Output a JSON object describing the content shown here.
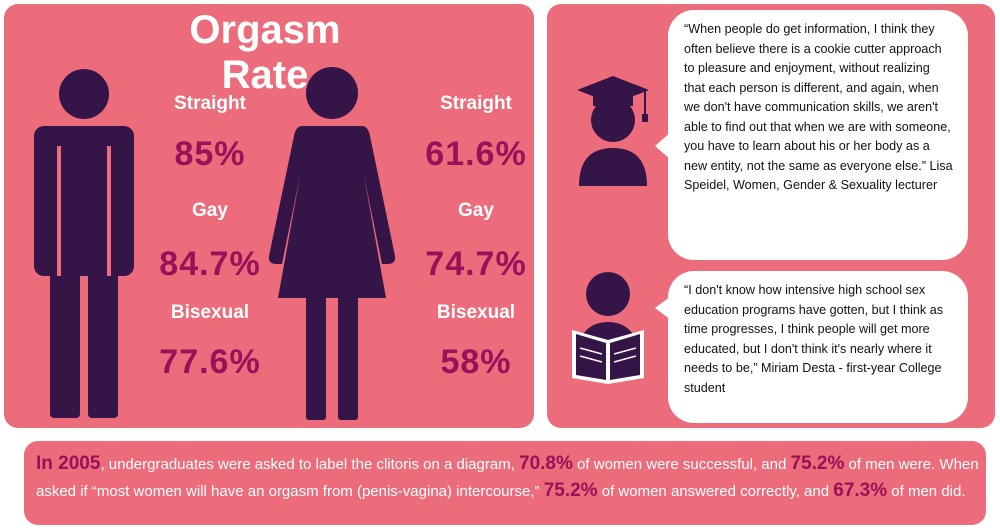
{
  "title": "Orgasm Rate",
  "men": {
    "straight_label": "Straight",
    "straight_value": "85%",
    "gay_label": "Gay",
    "gay_value": "84.7%",
    "bisexual_label": "Bisexual",
    "bisexual_value": "77.6%"
  },
  "women": {
    "straight_label": "Straight",
    "straight_value": "61.6%",
    "gay_label": "Gay",
    "gay_value": "74.7%",
    "bisexual_label": "Bisexual",
    "bisexual_value": "58%"
  },
  "quotes": [
    {
      "text": "“When people do get information, I think they often believe there is a cookie cutter approach to pleasure and enjoyment, without realizing that each person is different, and again, when we don't have communication skills, we aren't able to find out that when we are with someone, you have to learn about his or her body as a new entity, not the same as everyone else.” Lisa Speidel, Women, Gender & Sexuality lecturer"
    },
    {
      "text": "“I don't know how intensive high school sex education programs have gotten, but I think as time progresses, I think people will get more educated, but I don't think it's nearly where it needs to be,” Miriam Desta - first-year College student"
    }
  ],
  "bottom": {
    "year": "In 2005",
    "t1": ", undergraduates were asked to label the clitoris on a diagram, ",
    "v1": "70.8%",
    "t2": " of women were successful, and ",
    "v2": "75.2%",
    "t3": " of men were. When asked if “most women will have an orgasm from (penis-vagina) intercourse,” ",
    "v3": "75.2%",
    "t4": " of women answered correctly, and ",
    "v4": "67.3%",
    "t5": " of men did."
  },
  "colors": {
    "panel": "#ec6c7c",
    "figure": "#351548",
    "highlight": "#9c0f59",
    "text_light": "#ffffff"
  },
  "icons": [
    "man-icon",
    "woman-icon",
    "graduate-icon",
    "reader-icon"
  ]
}
